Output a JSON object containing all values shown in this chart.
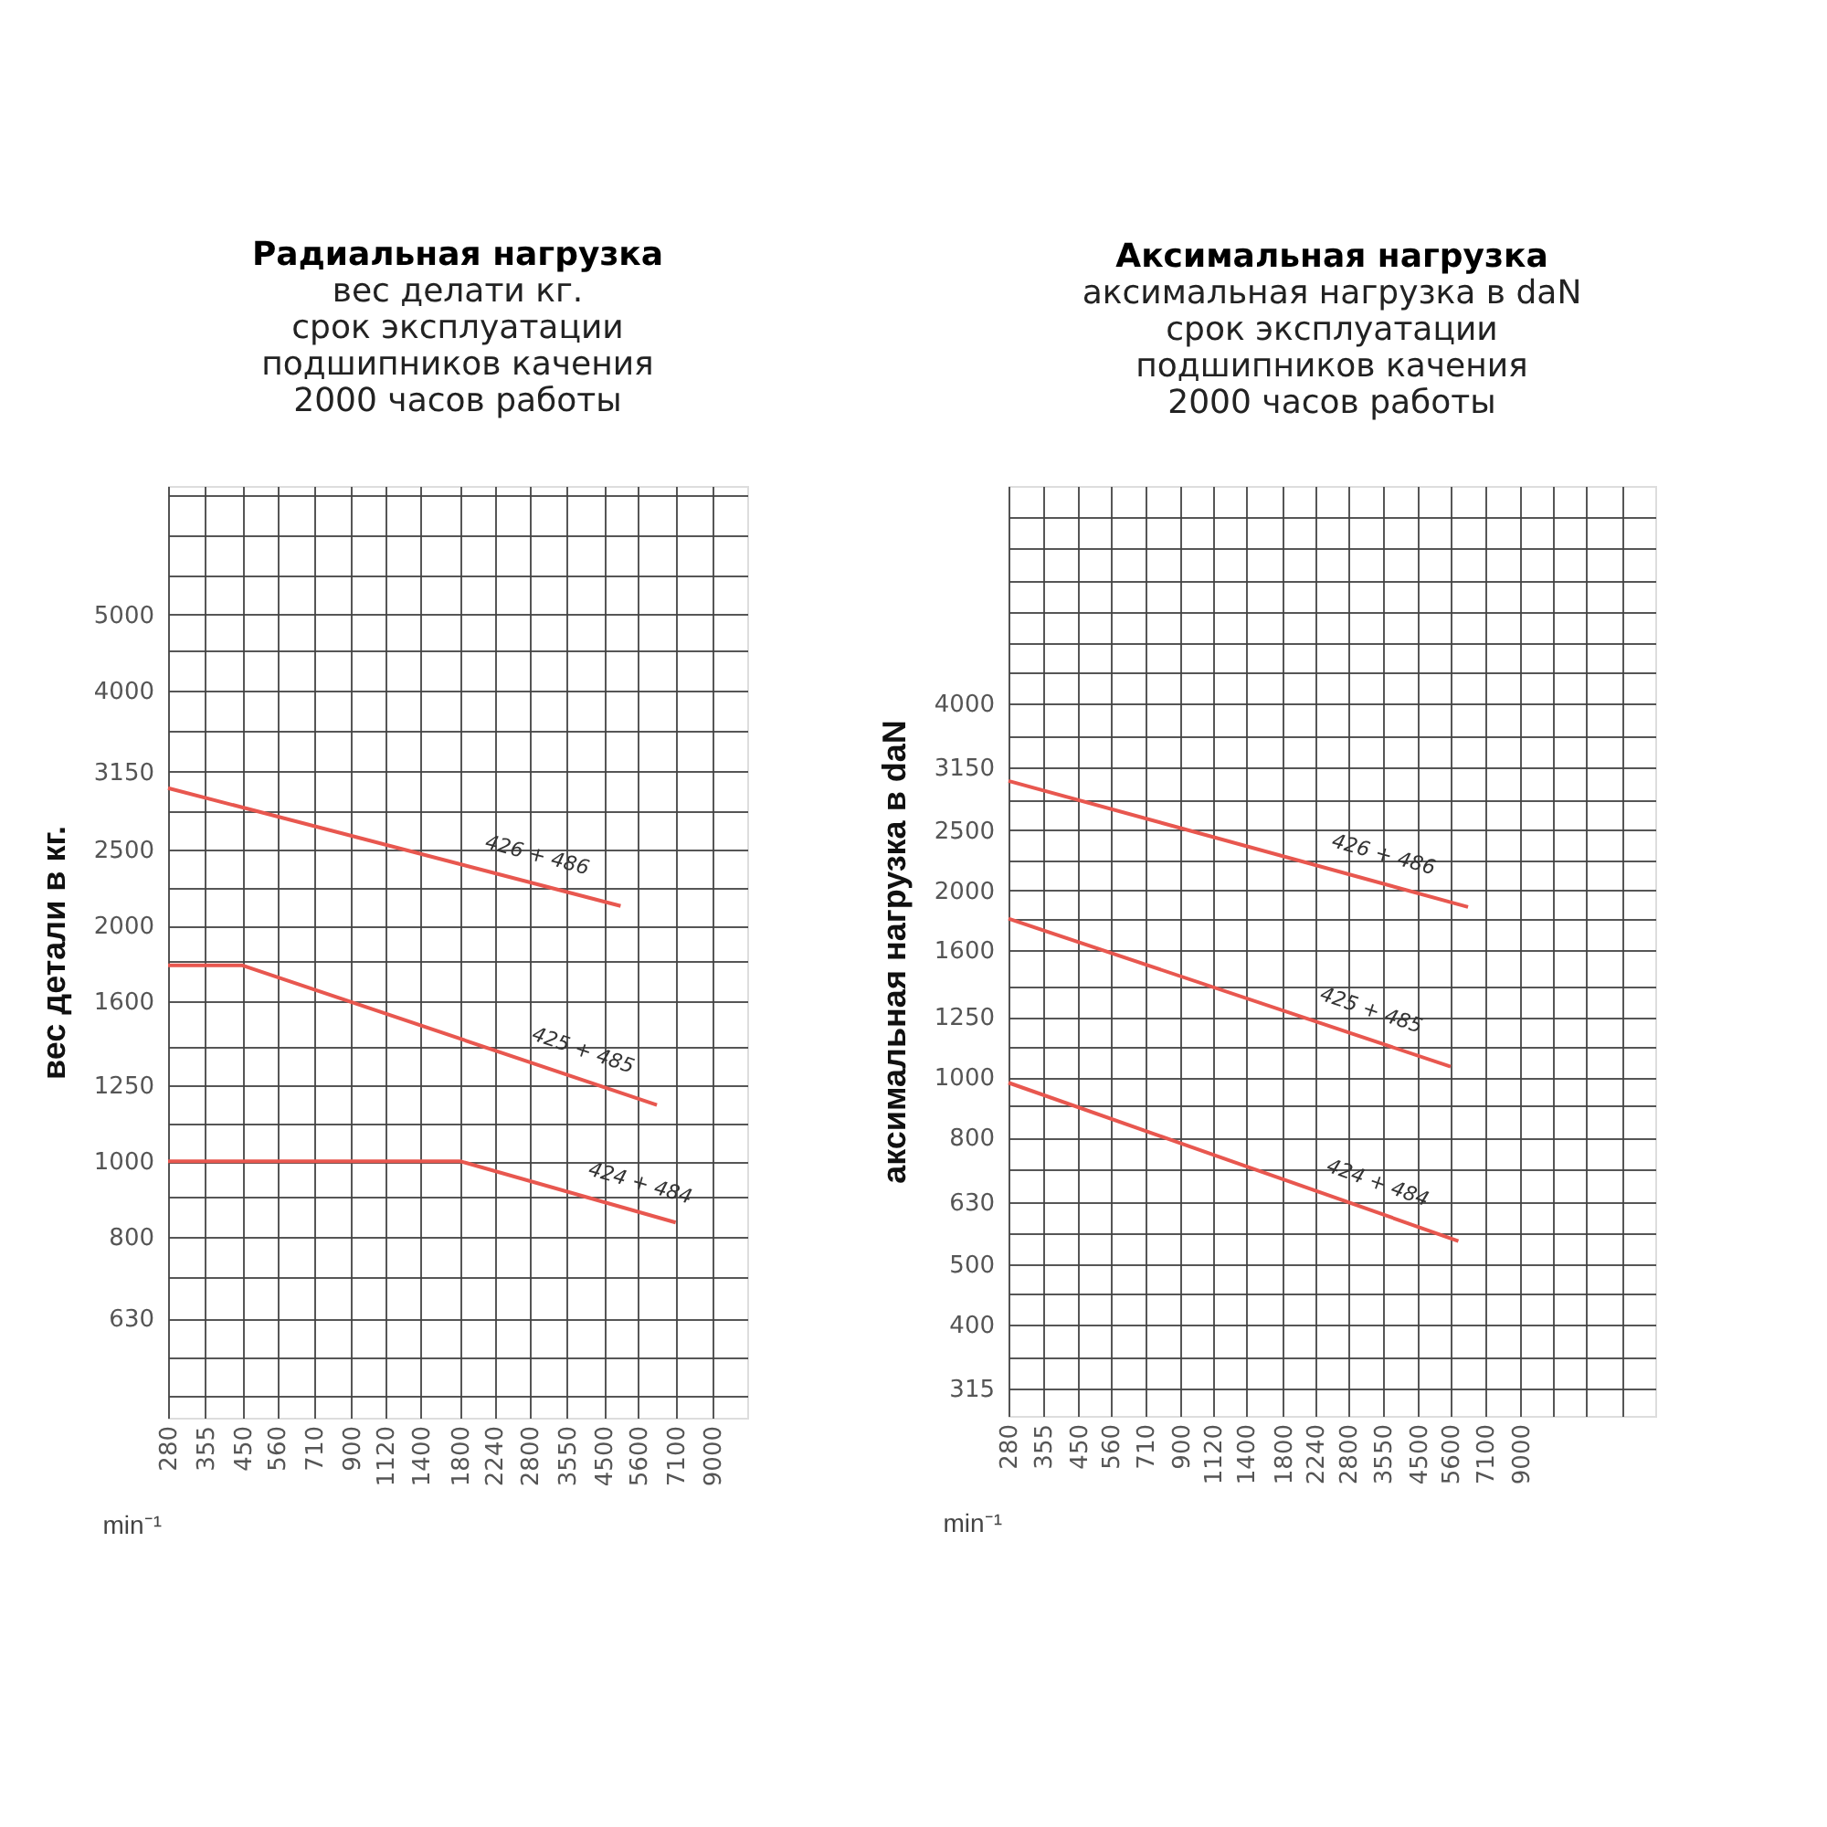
{
  "chart_data": [
    {
      "type": "line",
      "title": "Радиальная нагрузка",
      "subtitle": "вес делати кг.\n\nсрок эксплуатации\nподшипников качения\n2000 часов работы",
      "xlabel": "min⁻¹",
      "ylabel": "вес детали в кг.",
      "log": "xy",
      "grid": true,
      "marker": "none",
      "line_style": "solid",
      "xlim": [
        280,
        11200
      ],
      "ylim": [
        470,
        7300
      ],
      "xticks": [
        280,
        355,
        450,
        560,
        710,
        900,
        1120,
        1400,
        1800,
        2240,
        2800,
        3550,
        4500,
        5600,
        7100,
        9000
      ],
      "yticks": [
        {
          "value": 500,
          "label": null
        },
        {
          "value": 560,
          "label": null
        },
        630,
        {
          "value": 710,
          "label": null
        },
        800,
        {
          "value": 900,
          "label": null
        },
        1000,
        {
          "value": 1120,
          "label": null
        },
        1250,
        {
          "value": 1400,
          "label": null
        },
        1600,
        {
          "value": 1800,
          "label": null
        },
        2000,
        {
          "value": 2240,
          "label": null
        },
        2500,
        {
          "value": 2800,
          "label": null
        },
        3150,
        {
          "value": 3550,
          "label": null
        },
        4000,
        {
          "value": 4500,
          "label": null
        },
        5000,
        {
          "value": 5600,
          "label": null
        },
        {
          "value": 6300,
          "label": null
        },
        {
          "value": 7100,
          "label": null
        }
      ],
      "series": [
        {
          "name": "426 + 486",
          "color": "#e8574f",
          "x": [
            280,
            5000
          ],
          "values": [
            3000,
            2120
          ]
        },
        {
          "name": "425 + 485",
          "color": "#e8574f",
          "x": [
            280,
            450,
            6300
          ],
          "values": [
            1780,
            1780,
            1180
          ]
        },
        {
          "name": "424 + 484",
          "color": "#e8574f",
          "x": [
            280,
            1800,
            7100
          ],
          "values": [
            1000,
            1000,
            835
          ]
        }
      ]
    },
    {
      "type": "line",
      "title": "Аксимальная нагрузка",
      "subtitle": "аксимальная нагрузка в daN\n\nсрок эксплуатации\nподшипников качения\n2000 часов работы",
      "xlabel": "min⁻¹",
      "ylabel": "аксимальная нагрузка в daN",
      "log": "xy",
      "grid": true,
      "marker": "none",
      "line_style": "solid",
      "xlim": [
        280,
        22400
      ],
      "ylim": [
        285,
        8950
      ],
      "xticks": [
        280,
        355,
        450,
        560,
        710,
        900,
        1120,
        1400,
        1800,
        2240,
        2800,
        3550,
        4500,
        5600,
        7100,
        9000,
        {
          "value": 11200,
          "label": null
        },
        {
          "value": 14000,
          "label": null
        },
        {
          "value": 18000,
          "label": null
        }
      ],
      "yticks": [
        315,
        {
          "value": 355,
          "label": null
        },
        400,
        {
          "value": 450,
          "label": null
        },
        500,
        {
          "value": 560,
          "label": null
        },
        630,
        {
          "value": 710,
          "label": null
        },
        800,
        {
          "value": 900,
          "label": null
        },
        1000,
        {
          "value": 1120,
          "label": null
        },
        1250,
        {
          "value": 1400,
          "label": null
        },
        1600,
        {
          "value": 1800,
          "label": null
        },
        2000,
        {
          "value": 2240,
          "label": null
        },
        2500,
        {
          "value": 2800,
          "label": null
        },
        3150,
        {
          "value": 3550,
          "label": null
        },
        4000,
        {
          "value": 4500,
          "label": null
        },
        {
          "value": 5000,
          "label": null
        },
        {
          "value": 5600,
          "label": null
        },
        {
          "value": 6300,
          "label": null
        },
        {
          "value": 7100,
          "label": null
        },
        {
          "value": 8000,
          "label": null
        }
      ],
      "series": [
        {
          "name": "426 + 486",
          "color": "#e8574f",
          "x": [
            280,
            6300
          ],
          "values": [
            3000,
            1880
          ]
        },
        {
          "name": "425 + 485",
          "color": "#e8574f",
          "x": [
            280,
            5600
          ],
          "values": [
            1800,
            1040
          ]
        },
        {
          "name": "424 + 484",
          "color": "#e8574f",
          "x": [
            280,
            5900
          ],
          "values": [
            980,
            545
          ]
        }
      ]
    }
  ]
}
